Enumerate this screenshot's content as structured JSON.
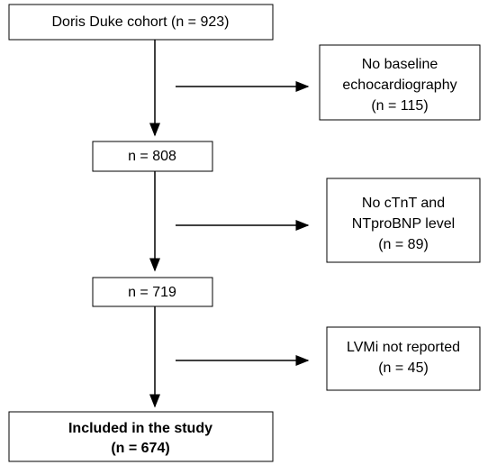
{
  "nodes": [
    {
      "lines": [
        "Doris Duke cohort (n = 923)"
      ]
    },
    {
      "lines": [
        "No baseline",
        "echocardiography",
        "(n = 115)"
      ]
    },
    {
      "lines": [
        "n = 808"
      ]
    },
    {
      "lines": [
        "No cTnT and",
        "NTproBNP level",
        "(n = 89)"
      ]
    },
    {
      "lines": [
        "n = 719"
      ]
    },
    {
      "lines": [
        "LVMi not reported",
        "(n = 45)"
      ]
    },
    {
      "lines": [
        "Included in the study",
        "(n = 674)"
      ]
    }
  ]
}
